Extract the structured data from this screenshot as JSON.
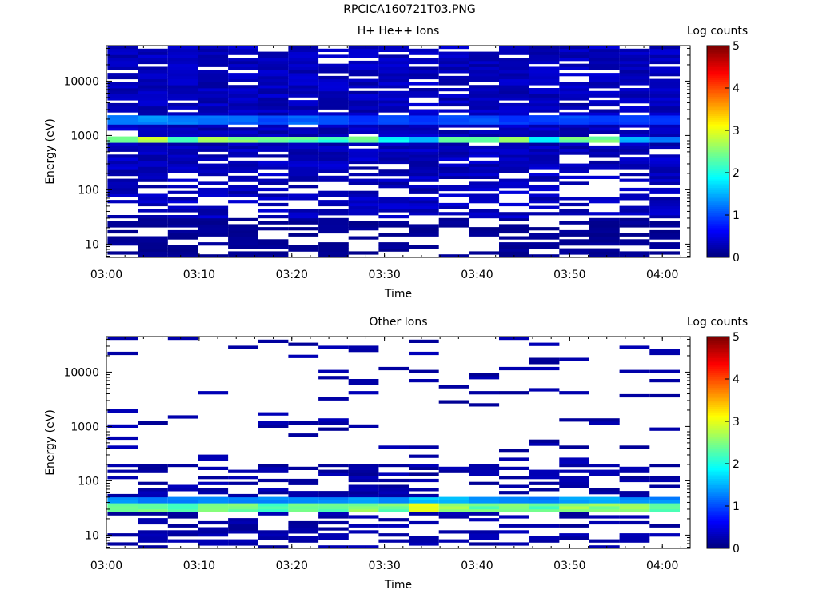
{
  "page_title": "RPCICA160721T03.PNG",
  "chart_data": [
    {
      "type": "heatmap",
      "title": "H+ He++ Ions",
      "xlabel": "Time",
      "ylabel": "Energy (eV)",
      "xlim": [
        "03:00",
        "04:03"
      ],
      "ylim": [
        5.7,
        45000
      ],
      "y_scale": "log",
      "x_ticks": [
        "03:00",
        "03:10",
        "03:20",
        "03:30",
        "03:40",
        "03:50",
        "04:00"
      ],
      "y_ticks": [
        {
          "value": 10,
          "label": "10"
        },
        {
          "value": 100,
          "label": "100"
        },
        {
          "value": 1000,
          "label": "1000"
        },
        {
          "value": 10000,
          "label": "10000"
        }
      ],
      "colorbar": {
        "label": "Log counts",
        "range": [
          0,
          5
        ],
        "ticks": [
          "0",
          "1",
          "2",
          "3",
          "4",
          "5"
        ]
      },
      "time_bins": [
        "03:01:45",
        "03:05:00",
        "03:08:15",
        "03:11:30",
        "03:14:45",
        "03:18:00",
        "03:21:15",
        "03:24:30",
        "03:27:45",
        "03:31:00",
        "03:34:15",
        "03:37:30",
        "03:40:45",
        "03:44:00",
        "03:47:15",
        "03:50:30",
        "03:53:45",
        "03:57:00",
        "04:00:15"
      ],
      "bands": [
        {
          "energy_range": [
            700,
            1000
          ],
          "log_counts_per_time_bin": [
            2.5,
            2.8,
            2.2,
            2.6,
            2.5,
            2.4,
            2.3,
            2.1,
            2.4,
            1.8,
            1.6,
            2.4,
            2.5,
            2.5,
            1.9,
            2.4,
            2.5,
            1.5,
            1.2
          ]
        },
        {
          "energy_range": [
            1700,
            2300
          ],
          "log_counts_per_time_bin": [
            1.2,
            1.3,
            1.2,
            1.2,
            1.1,
            1.0,
            1.1,
            1.0,
            0.9,
            1.0,
            0.9,
            1.0,
            1.0,
            0.9,
            0.9,
            1.0,
            0.9,
            0.9,
            0.9
          ]
        },
        {
          "energy_range": [
            5.7,
            30
          ],
          "log_counts_per_time_bin": [
            0.1,
            0.1,
            0.1,
            0.1,
            0.1,
            0.1,
            0.1,
            0.1,
            0.1,
            0.1,
            0.1,
            0.1,
            0.1,
            0.1,
            0.1,
            0.1,
            0.1,
            0.1,
            0.1
          ]
        },
        {
          "energy_range": [
            30,
            45000
          ],
          "log_counts_per_time_bin": [
            0.3,
            0.3,
            0.3,
            0.3,
            0.3,
            0.3,
            0.3,
            0.3,
            0.3,
            0.3,
            0.3,
            0.3,
            0.3,
            0.3,
            0.3,
            0.3,
            0.3,
            0.3,
            0.3
          ]
        }
      ]
    },
    {
      "type": "heatmap",
      "title": "Other Ions",
      "xlabel": "Time",
      "ylabel": "Energy (eV)",
      "xlim": [
        "03:00",
        "04:03"
      ],
      "ylim": [
        5.7,
        45000
      ],
      "y_scale": "log",
      "x_ticks": [
        "03:00",
        "03:10",
        "03:20",
        "03:30",
        "03:40",
        "03:50",
        "04:00"
      ],
      "y_ticks": [
        {
          "value": 10,
          "label": "10"
        },
        {
          "value": 100,
          "label": "100"
        },
        {
          "value": 1000,
          "label": "1000"
        },
        {
          "value": 10000,
          "label": "10000"
        }
      ],
      "colorbar": {
        "label": "Log counts",
        "range": [
          0,
          5
        ],
        "ticks": [
          "0",
          "1",
          "2",
          "3",
          "4",
          "5"
        ]
      },
      "time_bins": [
        "03:01:45",
        "03:05:00",
        "03:08:15",
        "03:11:30",
        "03:14:45",
        "03:18:00",
        "03:21:15",
        "03:24:30",
        "03:27:45",
        "03:31:00",
        "03:34:15",
        "03:37:30",
        "03:40:45",
        "03:44:00",
        "03:47:15",
        "03:50:30",
        "03:53:45",
        "03:57:00",
        "04:00:15"
      ],
      "bands": [
        {
          "energy_range": [
            28,
            38
          ],
          "log_counts_per_time_bin": [
            2.3,
            2.4,
            2.3,
            2.4,
            2.4,
            2.3,
            2.4,
            2.4,
            2.5,
            2.4,
            3.1,
            2.7,
            2.4,
            2.4,
            2.3,
            2.6,
            2.6,
            2.5,
            2.4
          ]
        },
        {
          "energy_range": [
            38,
            48
          ],
          "log_counts_per_time_bin": [
            1.3,
            1.3,
            1.2,
            1.3,
            1.2,
            1.3,
            1.3,
            1.3,
            1.4,
            1.3,
            1.6,
            1.5,
            1.3,
            1.3,
            1.2,
            1.4,
            1.4,
            1.3,
            1.3
          ]
        },
        {
          "energy_range": [
            5.7,
            28
          ],
          "log_counts_per_time_bin": [
            0.2,
            0.2,
            0.2,
            0.2,
            0.2,
            0.2,
            0.2,
            0.2,
            0.2,
            0.2,
            0.2,
            0.2,
            0.2,
            0.2,
            0.2,
            0.2,
            0.2,
            0.2,
            0.2
          ]
        },
        {
          "energy_range": [
            48,
            45000
          ],
          "log_counts_per_time_bin": [
            0.2,
            0.2,
            0.2,
            0.2,
            0.2,
            0.2,
            0.2,
            0.2,
            0.2,
            0.2,
            0.2,
            0.2,
            0.2,
            0.2,
            0.2,
            0.2,
            0.2,
            0.2,
            0.2
          ]
        }
      ]
    }
  ]
}
